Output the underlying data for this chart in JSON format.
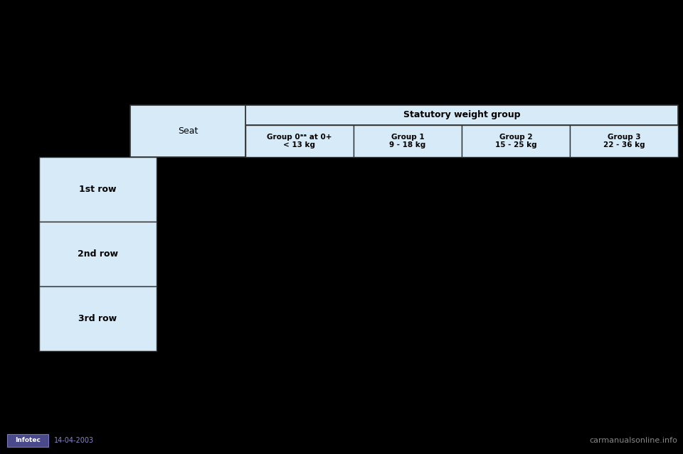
{
  "background_color": "#000000",
  "cell_bg": "#d6eaf8",
  "border_color": "#333333",
  "text_color": "#000000",
  "header_title": "Statutory weight group",
  "seat_label": "Seat",
  "col_headers": [
    "Group 0ᵃᵃ at 0+\n< 13 kg",
    "Group 1\n9 - 18 kg",
    "Group 2\n15 - 25 kg",
    "Group 3\n22 - 36 kg"
  ],
  "row_labels": [
    "1st row",
    "2nd row",
    "3rd row"
  ],
  "infotec_text": "14-04-2003",
  "carmanuals_text": "carmanualsonline.info",
  "fig_w": 9.6,
  "fig_h": 6.39,
  "dpi": 100
}
